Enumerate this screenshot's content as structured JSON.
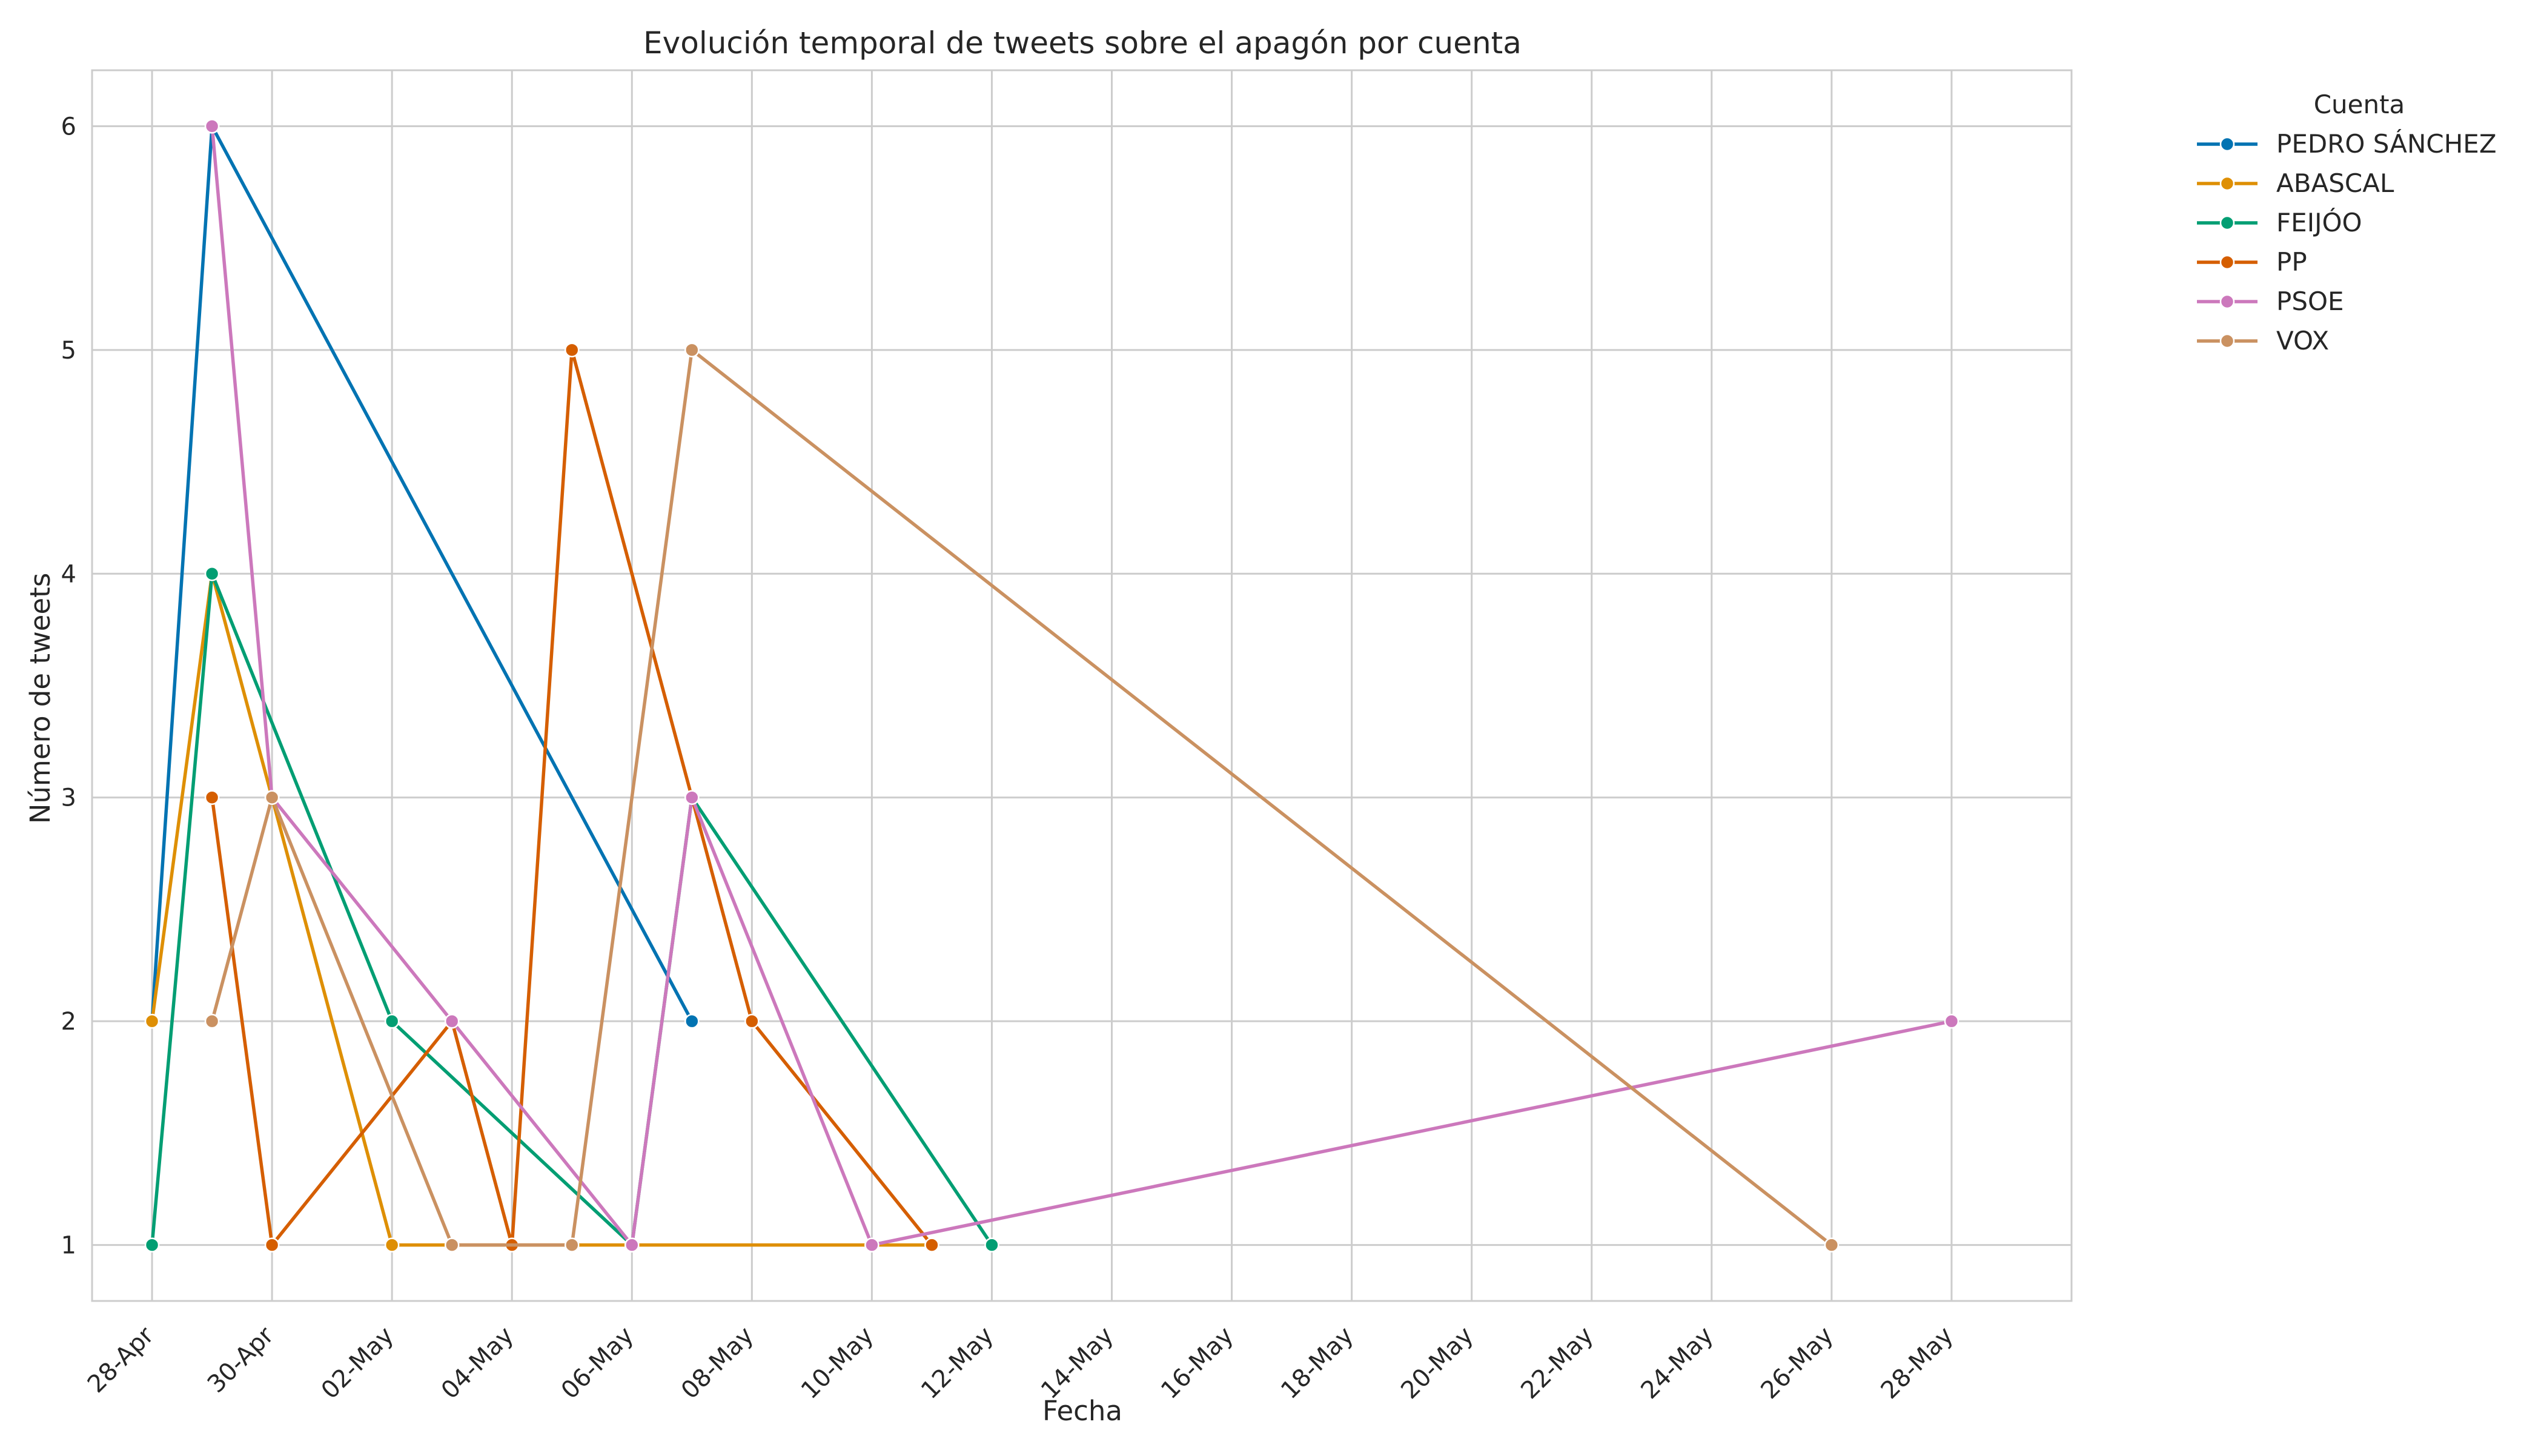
{
  "chart_data": {
    "type": "line",
    "title": "Evolución temporal de tweets sobre el apagón por cuenta",
    "xlabel": "Fecha",
    "ylabel": "Número de tweets",
    "x_range": [
      "2025-04-27",
      "2025-05-30"
    ],
    "ylim": [
      0.75,
      6.25
    ],
    "grid": true,
    "legend": {
      "title": "Cuenta",
      "placement": "outside-top-right"
    },
    "x_ticks": [
      {
        "date": "2025-04-28",
        "label": "28-Apr"
      },
      {
        "date": "2025-04-30",
        "label": "30-Apr"
      },
      {
        "date": "2025-05-02",
        "label": "02-May"
      },
      {
        "date": "2025-05-04",
        "label": "04-May"
      },
      {
        "date": "2025-05-06",
        "label": "06-May"
      },
      {
        "date": "2025-05-08",
        "label": "08-May"
      },
      {
        "date": "2025-05-10",
        "label": "10-May"
      },
      {
        "date": "2025-05-12",
        "label": "12-May"
      },
      {
        "date": "2025-05-14",
        "label": "14-May"
      },
      {
        "date": "2025-05-16",
        "label": "16-May"
      },
      {
        "date": "2025-05-18",
        "label": "18-May"
      },
      {
        "date": "2025-05-20",
        "label": "20-May"
      },
      {
        "date": "2025-05-22",
        "label": "22-May"
      },
      {
        "date": "2025-05-24",
        "label": "24-May"
      },
      {
        "date": "2025-05-26",
        "label": "26-May"
      },
      {
        "date": "2025-05-28",
        "label": "28-May"
      }
    ],
    "y_ticks": [
      1,
      2,
      3,
      4,
      5,
      6
    ],
    "series": [
      {
        "name": "PEDRO SÁNCHEZ",
        "color": "#0173b2",
        "points": [
          [
            "2025-04-28",
            2
          ],
          [
            "2025-04-29",
            6
          ],
          [
            "2025-05-07",
            2
          ]
        ]
      },
      {
        "name": "ABASCAL",
        "color": "#de8f05",
        "points": [
          [
            "2025-04-28",
            2
          ],
          [
            "2025-04-29",
            4
          ],
          [
            "2025-04-30",
            3
          ],
          [
            "2025-05-02",
            1
          ],
          [
            "2025-05-06",
            1
          ],
          [
            "2025-05-10",
            1
          ],
          [
            "2025-05-11",
            1
          ]
        ]
      },
      {
        "name": "FEIJÓO",
        "color": "#029e73",
        "points": [
          [
            "2025-04-28",
            1
          ],
          [
            "2025-04-29",
            4
          ],
          [
            "2025-05-02",
            2
          ],
          [
            "2025-05-06",
            1
          ],
          [
            "2025-05-07",
            3
          ],
          [
            "2025-05-12",
            1
          ]
        ]
      },
      {
        "name": "PP",
        "color": "#d55e00",
        "points": [
          [
            "2025-04-29",
            3
          ],
          [
            "2025-04-30",
            1
          ],
          [
            "2025-05-03",
            2
          ],
          [
            "2025-05-04",
            1
          ],
          [
            "2025-05-05",
            5
          ],
          [
            "2025-05-07",
            3
          ],
          [
            "2025-05-08",
            2
          ],
          [
            "2025-05-11",
            1
          ]
        ]
      },
      {
        "name": "PSOE",
        "color": "#cc78bc",
        "points": [
          [
            "2025-04-29",
            6
          ],
          [
            "2025-04-30",
            3
          ],
          [
            "2025-05-03",
            2
          ],
          [
            "2025-05-06",
            1
          ],
          [
            "2025-05-07",
            3
          ],
          [
            "2025-05-10",
            1
          ],
          [
            "2025-05-28",
            2
          ]
        ]
      },
      {
        "name": "VOX",
        "color": "#ca9161",
        "points": [
          [
            "2025-04-29",
            2
          ],
          [
            "2025-04-30",
            3
          ],
          [
            "2025-05-03",
            1
          ],
          [
            "2025-05-05",
            1
          ],
          [
            "2025-05-07",
            5
          ],
          [
            "2025-05-26",
            1
          ]
        ]
      }
    ]
  }
}
